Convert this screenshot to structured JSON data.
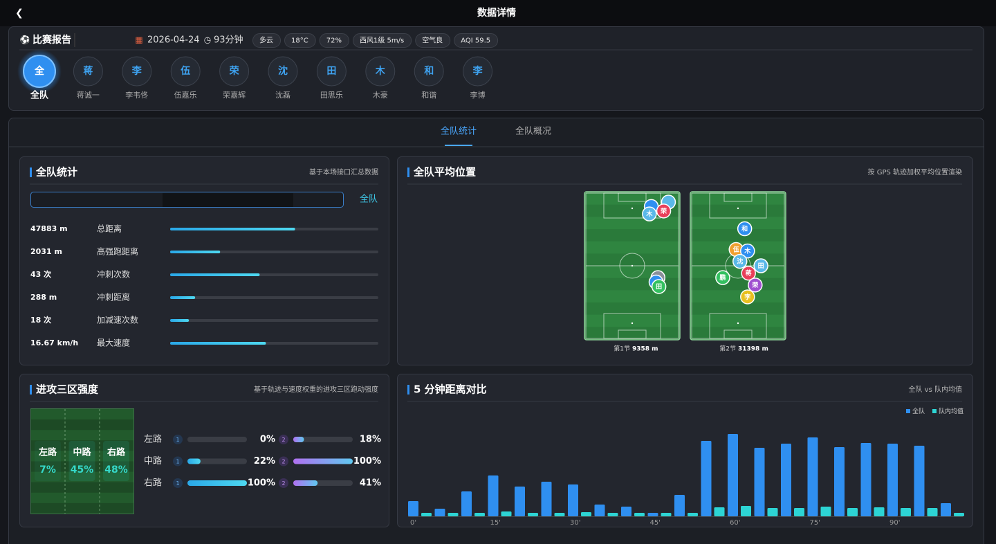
{
  "header": {
    "title": "数据详情"
  },
  "match": {
    "title": "比赛报告",
    "date": "2026-04-24",
    "duration": "93分钟",
    "chips": [
      "多云",
      "18°C",
      "72%",
      "西风1级 5m/s",
      "空气良",
      "AQI 59.5"
    ]
  },
  "players": [
    {
      "avatar": "全",
      "name": "全队"
    },
    {
      "avatar": "蒋",
      "name": "蒋诚一"
    },
    {
      "avatar": "李",
      "name": "李韦佟"
    },
    {
      "avatar": "伍",
      "name": "伍嘉乐"
    },
    {
      "avatar": "荣",
      "name": "荣嘉辉"
    },
    {
      "avatar": "沈",
      "name": "沈磊"
    },
    {
      "avatar": "田",
      "name": "田思乐"
    },
    {
      "avatar": "木",
      "name": "木豪"
    },
    {
      "avatar": "和",
      "name": "和谐"
    },
    {
      "avatar": "李",
      "name": "李博"
    }
  ],
  "tabs": [
    "全队统计",
    "全队概况"
  ],
  "stats": {
    "title": "全队统计",
    "note": "基于本场接口汇总数据",
    "filter": "全队",
    "barlim": [
      0,
      100
    ],
    "rows": [
      {
        "value": "47883 m",
        "label": "总距离",
        "bar": 60
      },
      {
        "value": "2031 m",
        "label": "高强跑距离",
        "bar": 24
      },
      {
        "value": "43 次",
        "label": "冲刺次数",
        "bar": 43
      },
      {
        "value": "288 m",
        "label": "冲刺距离",
        "bar": 12
      },
      {
        "value": "18 次",
        "label": "加减速次数",
        "bar": 9
      },
      {
        "value": "16.67 km/h",
        "label": "最大速度",
        "bar": 46
      }
    ]
  },
  "positions": {
    "title": "全队平均位置",
    "note": "按 GPS 轨迹加权平均位置渲染",
    "xlim": [
      0,
      100
    ],
    "ylim": [
      0,
      100
    ],
    "halves": [
      {
        "label": "第1节",
        "distance": "9358 m",
        "markers": [
          {
            "label": null,
            "x": 70,
            "y": 10,
            "color": "#2f8ff0"
          },
          {
            "label": null,
            "x": 88,
            "y": 7,
            "color": "#5ab8e8"
          },
          {
            "label": "荣",
            "x": 83,
            "y": 13,
            "color": "#e8405a"
          },
          {
            "label": "木",
            "x": 68,
            "y": 15,
            "color": "#5ab8e8"
          },
          {
            "label": null,
            "x": 77,
            "y": 58,
            "color": "#8a8f99"
          },
          {
            "label": null,
            "x": 75,
            "y": 61,
            "color": "#2f8ff0"
          },
          {
            "label": "田",
            "x": 78,
            "y": 64,
            "color": "#34c060"
          }
        ]
      },
      {
        "label": "第2节",
        "distance": "31398 m",
        "markers": [
          {
            "label": "和",
            "x": 57,
            "y": 25,
            "color": "#2f8ff0"
          },
          {
            "label": "伍",
            "x": 48,
            "y": 39,
            "color": "#f0a030"
          },
          {
            "label": "木",
            "x": 60,
            "y": 40,
            "color": "#2f8ff0"
          },
          {
            "label": "沈",
            "x": 52,
            "y": 47,
            "color": "#5ab8e8"
          },
          {
            "label": "田",
            "x": 74,
            "y": 50,
            "color": "#5ab8e8"
          },
          {
            "label": "蒋",
            "x": 61,
            "y": 55,
            "color": "#e8405a"
          },
          {
            "label": "鹏",
            "x": 34,
            "y": 58,
            "color": "#34c060"
          },
          {
            "label": "荣",
            "x": 68,
            "y": 63,
            "color": "#a050d0"
          },
          {
            "label": "李",
            "x": 60,
            "y": 71,
            "color": "#e8c020"
          }
        ]
      }
    ]
  },
  "zones": {
    "title": "进攻三区强度",
    "note": "基于轨迹与速度权重的进攻三区跑动强度",
    "xlim": [
      0,
      100
    ],
    "field": [
      {
        "name": "左路",
        "value": 7,
        "value_label": "7%"
      },
      {
        "name": "中路",
        "value": 45,
        "value_label": "45%"
      },
      {
        "name": "右路",
        "value": 48,
        "value_label": "48%"
      }
    ],
    "rows": [
      {
        "name": "左路",
        "bars": [
          {
            "badge": "1",
            "value": 0,
            "value_label": "0%"
          },
          {
            "badge": "2",
            "value": 18,
            "value_label": "18%"
          }
        ]
      },
      {
        "name": "中路",
        "bars": [
          {
            "badge": "1",
            "value": 22,
            "value_label": "22%"
          },
          {
            "badge": "2",
            "value": 100,
            "value_label": "100%"
          }
        ]
      },
      {
        "name": "右路",
        "bars": [
          {
            "badge": "1",
            "value": 100,
            "value_label": "100%"
          },
          {
            "badge": "2",
            "value": 41,
            "value_label": "41%"
          }
        ]
      }
    ]
  },
  "chart_data": {
    "type": "bar",
    "title": "5 分钟距离对比",
    "note": "全队 vs 队内均值",
    "ylim": [
      0,
      130
    ],
    "categories": [
      "0'",
      null,
      null,
      "15'",
      null,
      null,
      "30'",
      null,
      null,
      "45'",
      null,
      null,
      "60'",
      null,
      null,
      "75'",
      null,
      null,
      "90'",
      null,
      null
    ],
    "series": [
      {
        "name": "全队",
        "color": "#2f8ff0",
        "values": [
          22,
          11,
          36,
          59,
          43,
          50,
          46,
          17,
          14,
          5,
          31,
          109,
          119,
          99,
          105,
          114,
          100,
          106,
          105,
          102,
          19
        ]
      },
      {
        "name": "队内均值",
        "color": "#2dd4d4",
        "values": [
          5,
          5,
          5,
          7,
          5,
          5,
          6,
          5,
          5,
          5,
          5,
          13,
          15,
          12,
          12,
          14,
          12,
          13,
          12,
          12,
          5
        ]
      }
    ]
  }
}
